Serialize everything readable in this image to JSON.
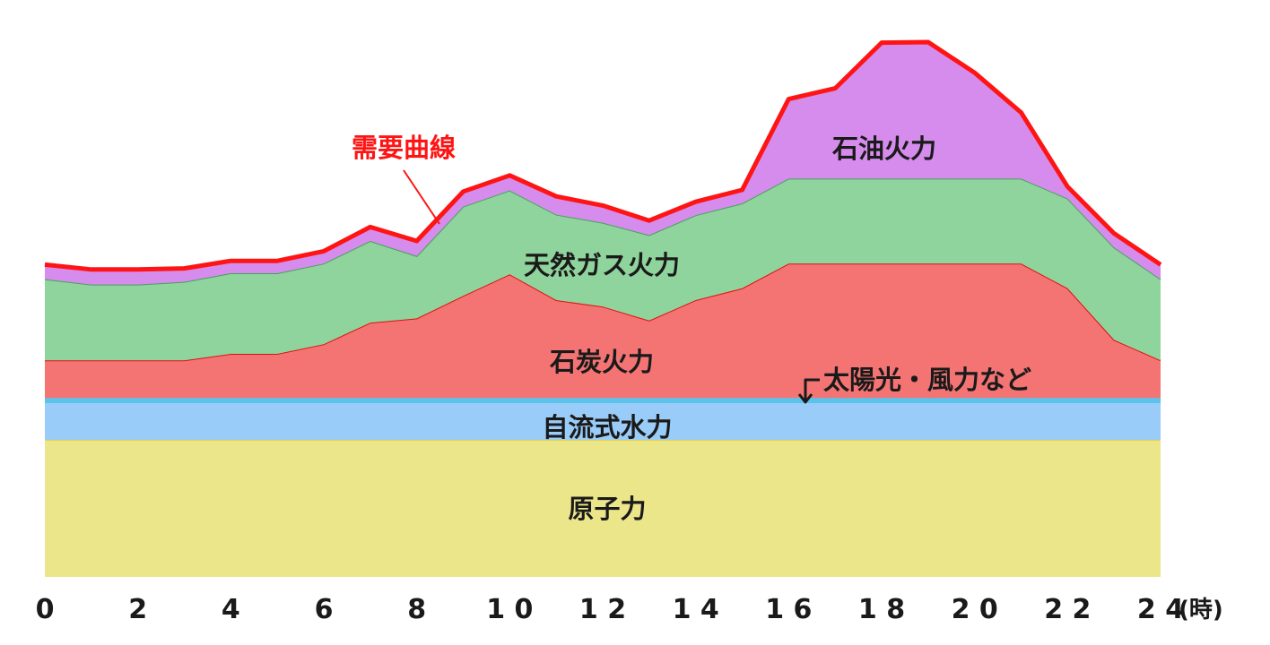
{
  "chart_data": {
    "type": "area",
    "stacked": true,
    "x": [
      0,
      1,
      2,
      3,
      4,
      5,
      6,
      7,
      8,
      9,
      10,
      11,
      12,
      13,
      14,
      15,
      16,
      17,
      18,
      19,
      20,
      21,
      22,
      23,
      24
    ],
    "xticks": [
      0,
      2,
      4,
      6,
      8,
      10,
      12,
      14,
      16,
      18,
      20,
      22,
      24
    ],
    "xtick_labels": [
      "0",
      "2",
      "4",
      "6",
      "8",
      "1 0",
      "1 2",
      "1 4",
      "1 6",
      "1 8",
      "2 0",
      "2 2",
      "2 4"
    ],
    "xunit": "(時)",
    "ylim": [
      0,
      100
    ],
    "series": [
      {
        "name": "原子力",
        "color": "#ece68a",
        "values": [
          25.5,
          25.5,
          25.5,
          25.5,
          25.5,
          25.5,
          25.5,
          25.5,
          25.5,
          25.5,
          25.5,
          25.5,
          25.5,
          25.5,
          25.5,
          25.5,
          25.5,
          25.5,
          25.5,
          25.5,
          25.5,
          25.5,
          25.5,
          25.5,
          25.5
        ]
      },
      {
        "name": "自流式水力",
        "color": "#99ccf8",
        "values": [
          7,
          7,
          7,
          7,
          7,
          7,
          7,
          7,
          7,
          7,
          7,
          7,
          7,
          7,
          7,
          7,
          7,
          7,
          7,
          7,
          7,
          7,
          7,
          7,
          7
        ]
      },
      {
        "name": "太陽光・風力など",
        "color": "#5bc3eb",
        "values": [
          0.8,
          0.8,
          0.8,
          0.8,
          0.8,
          0.8,
          0.8,
          0.8,
          0.8,
          0.8,
          0.8,
          0.8,
          0.8,
          0.8,
          0.8,
          0.8,
          0.8,
          0.8,
          0.8,
          0.8,
          0.8,
          0.8,
          0.8,
          0.8,
          0.8
        ]
      },
      {
        "name": "石炭火力",
        "color": "#f47474",
        "values": [
          7,
          7,
          7,
          7,
          8.2,
          8.2,
          10,
          14,
          14.8,
          19,
          23,
          18.2,
          17,
          14.4,
          18.2,
          20.4,
          25,
          25,
          25,
          25,
          25,
          25,
          20.4,
          10.8,
          7
        ]
      },
      {
        "name": "天然ガス火力",
        "color": "#8fd49c",
        "values": [
          15.1,
          14.1,
          14.1,
          14.6,
          15,
          15,
          15,
          15.2,
          11.6,
          16.6,
          15.6,
          15.9,
          15.6,
          15.9,
          15.8,
          15.8,
          15.8,
          15.8,
          15.8,
          15.8,
          15.8,
          15.8,
          16.7,
          17.2,
          15.1
        ]
      },
      {
        "name": "石油火力",
        "color": "#d58cec",
        "values": [
          2.7,
          2.8,
          2.8,
          2.5,
          2.3,
          2.3,
          2.3,
          2.6,
          2.8,
          2.8,
          2.8,
          3.4,
          3.2,
          2.7,
          2.5,
          2.5,
          14.8,
          16.8,
          25.3,
          25.4,
          19.7,
          12.3,
          2.2,
          2.6,
          2.7
        ]
      }
    ],
    "demand_line": {
      "name": "需要曲線",
      "color": "#ff1414"
    },
    "labels": {
      "oil": "石油火力",
      "gas": "天然ガス火力",
      "coal": "石炭火力",
      "solar": "太陽光・風力など",
      "hydro": "自流式水力",
      "nuclear": "原子力",
      "demand": "需要曲線"
    }
  }
}
